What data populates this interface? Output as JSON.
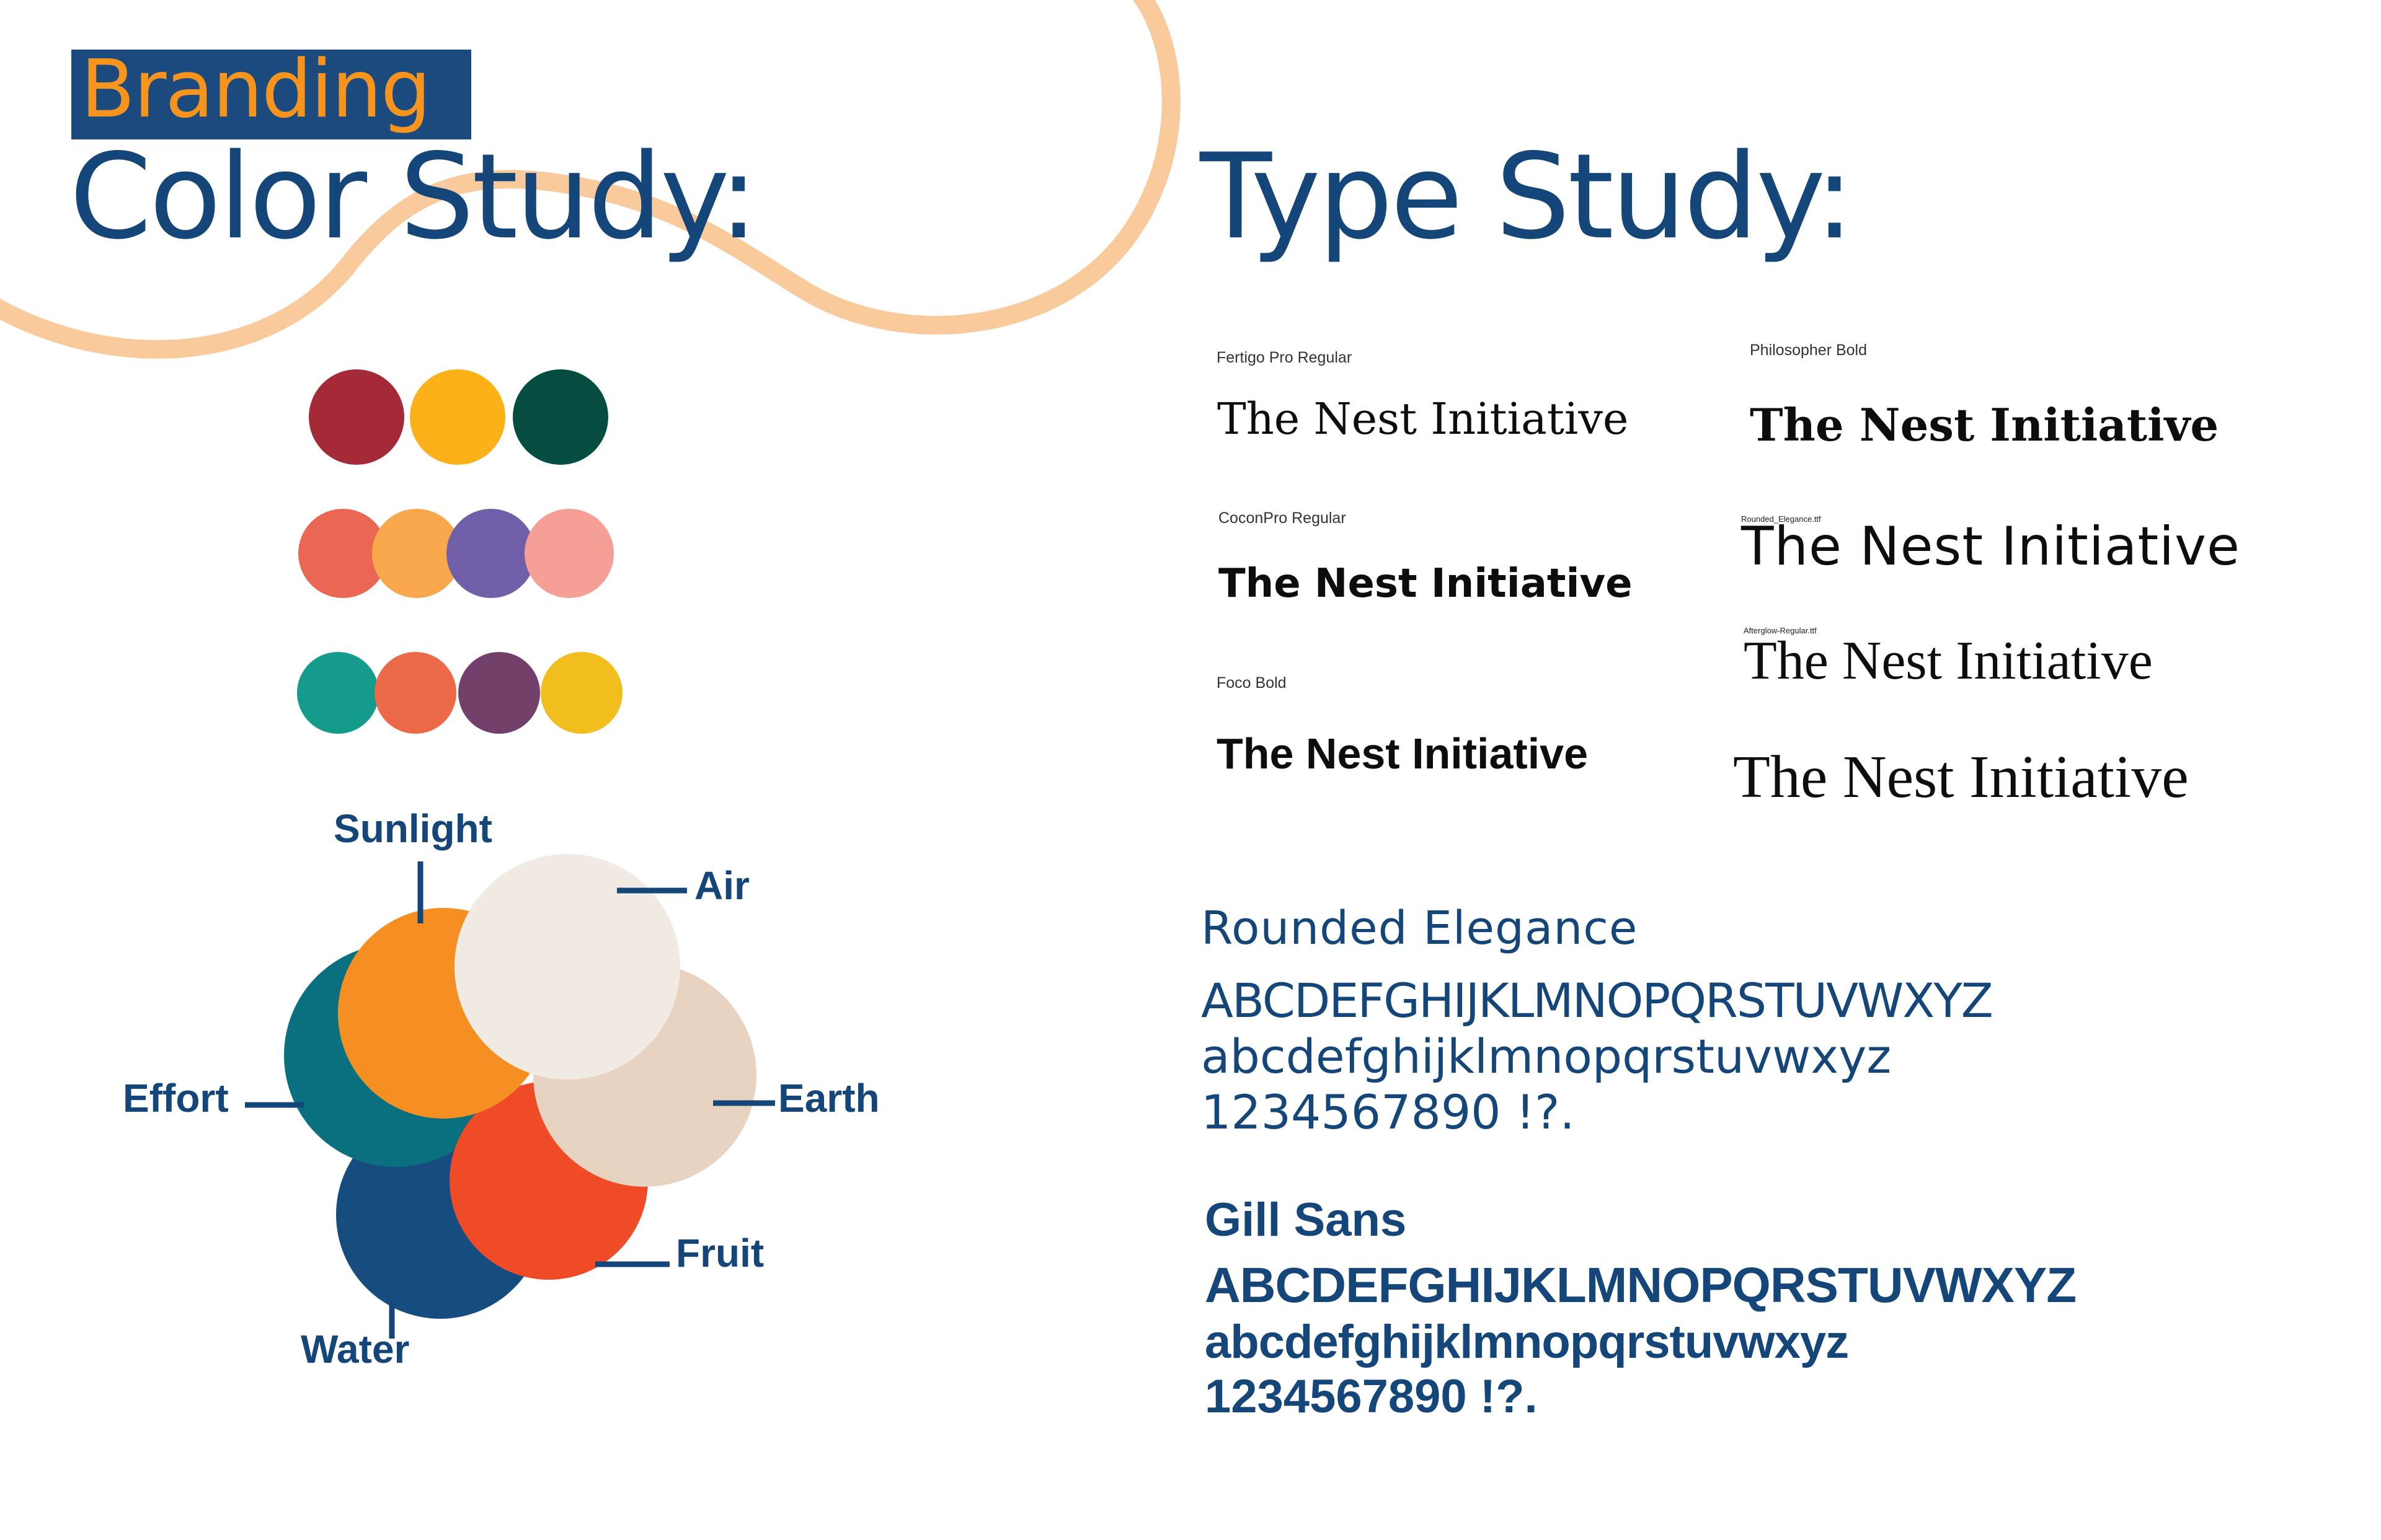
{
  "header": {
    "badge_label": "Branding",
    "color_title": "Color Study:",
    "type_title": "Type Study:"
  },
  "colors": {
    "title_blue": "#15467a",
    "accent_orange": "#f7941d",
    "wave_peach": "#f9cb9c",
    "palette_row_1": [
      "#a52a37",
      "#fbb117",
      "#044d40"
    ],
    "palette_row_2": [
      "#ec6654",
      "#f9a74d",
      "#7160a9",
      "#f59f97"
    ],
    "palette_row_3": [
      "#159b8c",
      "#ed6a48",
      "#72406b",
      "#f1be1e"
    ],
    "flower": {
      "sunlight": "#f68f22",
      "air": "#f1ebe4",
      "earth": "#e8d3c1",
      "fruit": "#ef4b27",
      "water": "#174c80",
      "effort": "#0a7080"
    }
  },
  "flower_labels": {
    "sunlight": "Sunlight",
    "air": "Air",
    "earth": "Earth",
    "fruit": "Fruit",
    "water": "Water",
    "effort": "Effort"
  },
  "type_samples": {
    "fertigo": {
      "label": "Fertigo Pro Regular",
      "text": "The Nest Initiative"
    },
    "philosopher": {
      "label": "Philosopher Bold",
      "text": "The Nest Initiative"
    },
    "cocon": {
      "label": "CoconPro Regular",
      "text": "The Nest Initiative"
    },
    "rounded": {
      "label": "Rounded_Elegance.ttf",
      "text": "The Nest Initiative"
    },
    "afterglow": {
      "label": "Afterglow-Regular.ttf",
      "text": "The Nest Initiative"
    },
    "foco": {
      "label": "Foco Bold",
      "text": "The Nest Initiative"
    },
    "extra": {
      "text": "The Nest Initiative"
    }
  },
  "specimens": {
    "rounded_elegance": {
      "name": "Rounded Elegance",
      "upper": "ABCDEFGHIJKLMNOPQRSTUVWXYZ",
      "lower": "abcdefghijklmnopqrstuvwxyz",
      "digits": "1234567890 !?."
    },
    "gill_sans": {
      "name": "Gill Sans",
      "upper": "ABCDEFGHIJKLMNOPQRSTUVWXYZ",
      "lower": "abcdefghijklmnopqrstuvwxyz",
      "digits": "1234567890 !?."
    }
  }
}
